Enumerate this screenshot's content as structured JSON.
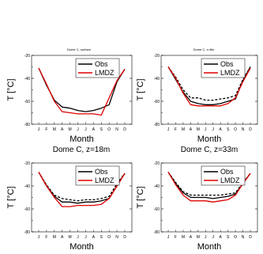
{
  "chart_data": [
    {
      "type": "line",
      "title": "Dome C, surface",
      "xlabel": "Month",
      "ylabel": "T [°C]",
      "categories": [
        "J",
        "F",
        "M",
        "A",
        "M",
        "J",
        "J",
        "A",
        "S",
        "O",
        "N",
        "D"
      ],
      "ylim": [
        -80,
        -20
      ],
      "yticks": [
        -20,
        -40,
        -60,
        -80
      ],
      "legend": "top-right",
      "series": [
        {
          "name": "Obs",
          "color": "#000000",
          "dash": "solid",
          "values": [
            -31,
            -46,
            -59,
            -65,
            -66,
            -68,
            -69,
            -68,
            -66,
            -63,
            -43,
            -32
          ]
        },
        {
          "name": "LMDZ",
          "color": "#e00000",
          "dash": "solid",
          "values": [
            -31,
            -45,
            -60,
            -69,
            -70,
            -71,
            -71,
            -71,
            -72,
            -57,
            -42,
            -32
          ]
        }
      ]
    },
    {
      "type": "line",
      "title": "Dome C, z=8m",
      "xlabel": "Month",
      "ylabel": "T [°C]",
      "categories": [
        "J",
        "F",
        "M",
        "A",
        "M",
        "J",
        "J",
        "A",
        "S",
        "O",
        "N",
        "D"
      ],
      "ylim": [
        -80,
        -20
      ],
      "yticks": [
        -20,
        -40,
        -60,
        -80
      ],
      "legend": "top-right",
      "series": [
        {
          "name": "Obs",
          "color": "#000000",
          "dash": "solid",
          "values": [
            -30,
            -41,
            -52,
            -60,
            -62,
            -63,
            -63,
            -62,
            -60,
            -58,
            -42,
            -30
          ]
        },
        {
          "name": "",
          "color": "#000000",
          "dash": "dashed",
          "values": [
            -30,
            -39,
            -50,
            -57,
            -57,
            -59,
            -59,
            -58,
            -57,
            -55,
            -41,
            -30
          ]
        },
        {
          "name": "LMDZ",
          "color": "#e00000",
          "dash": "solid",
          "values": [
            -30,
            -40,
            -53,
            -63,
            -64,
            -64,
            -64,
            -64,
            -62,
            -57,
            -43,
            -31
          ]
        }
      ]
    },
    {
      "type": "line",
      "title": "Dome C, z=18m",
      "xlabel": "Month",
      "ylabel": "T [°C]",
      "categories": [
        "J",
        "F",
        "M",
        "A",
        "M",
        "J",
        "J",
        "A",
        "S",
        "O",
        "N",
        "D"
      ],
      "ylim": [
        -80,
        -20
      ],
      "yticks": [
        -20,
        -40,
        -60,
        -80
      ],
      "legend": "top-right",
      "series": [
        {
          "name": "Obs",
          "color": "#000000",
          "dash": "solid",
          "values": [
            -28,
            -40,
            -49,
            -54,
            -54,
            -55,
            -54,
            -54,
            -53,
            -51,
            -40,
            -29
          ]
        },
        {
          "name": "",
          "color": "#000000",
          "dash": "dashed",
          "values": [
            -28,
            -39,
            -48,
            -51,
            -52,
            -53,
            -52,
            -52,
            -51,
            -49,
            -38,
            -29
          ]
        },
        {
          "name": "LMDZ",
          "color": "#e00000",
          "dash": "solid",
          "values": [
            -28,
            -40,
            -50,
            -58,
            -58,
            -57,
            -57,
            -57,
            -56,
            -51,
            -40,
            -29
          ]
        }
      ]
    },
    {
      "type": "line",
      "title": "Dome C, z=33m",
      "xlabel": "Month",
      "ylabel": "T [°C]",
      "categories": [
        "J",
        "F",
        "M",
        "A",
        "M",
        "J",
        "J",
        "A",
        "S",
        "O",
        "N",
        "D"
      ],
      "ylim": [
        -80,
        -20
      ],
      "yticks": [
        -20,
        -40,
        -60,
        -80
      ],
      "legend": "top-right",
      "series": [
        {
          "name": "Obs",
          "color": "#000000",
          "dash": "solid",
          "values": [
            -28,
            -38,
            -46,
            -50,
            -50,
            -50,
            -51,
            -50,
            -49,
            -47,
            -38,
            -29
          ]
        },
        {
          "name": "",
          "color": "#000000",
          "dash": "dashed",
          "values": [
            -28,
            -37,
            -45,
            -48,
            -48,
            -48,
            -48,
            -48,
            -47,
            -46,
            -37,
            -29
          ]
        },
        {
          "name": "LMDZ",
          "color": "#e00000",
          "dash": "solid",
          "values": [
            -28,
            -39,
            -48,
            -53,
            -53,
            -53,
            -54,
            -53,
            -52,
            -48,
            -38,
            -29
          ]
        }
      ]
    }
  ]
}
